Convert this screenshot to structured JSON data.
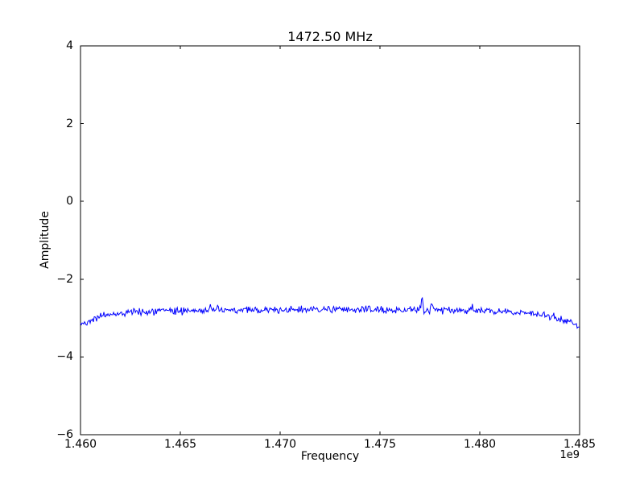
{
  "figure": {
    "background": "#ffffff",
    "frame_color": "#000000"
  },
  "chart_data": {
    "type": "line",
    "title": "1472.50 MHz",
    "xlabel": "Frequency",
    "ylabel": "Amplitude",
    "x_offset_label": "1e9",
    "xlim_ghz": [
      1.46,
      1.485
    ],
    "ylim": [
      -6,
      4
    ],
    "grid": false,
    "legend": "none",
    "xticks_ghz": [
      1.46,
      1.465,
      1.47,
      1.475,
      1.48,
      1.485
    ],
    "xtick_labels": [
      "1.460",
      "1.465",
      "1.470",
      "1.475",
      "1.480",
      "1.485"
    ],
    "yticks": [
      4,
      2,
      0,
      -2,
      -4,
      -6
    ],
    "ytick_labels": [
      "4",
      "2",
      "0",
      "−2",
      "−4",
      "−6"
    ],
    "line_color": "#0000ff",
    "line_width": 1,
    "series": [
      {
        "name": "spectrum",
        "description": "noisy bandpass spectrum, flat top near -2.8 with edge roll-off",
        "envelope_x_ghz": [
          1.46,
          1.4605,
          1.461,
          1.4615,
          1.462,
          1.463,
          1.465,
          1.4675,
          1.47,
          1.4725,
          1.475,
          1.4775,
          1.48,
          1.4815,
          1.4825,
          1.4835,
          1.4843,
          1.485
        ],
        "envelope_y": [
          -3.17,
          -3.05,
          -2.96,
          -2.91,
          -2.87,
          -2.84,
          -2.81,
          -2.8,
          -2.79,
          -2.78,
          -2.79,
          -2.79,
          -2.81,
          -2.84,
          -2.88,
          -2.95,
          -3.05,
          -3.22
        ],
        "noise_amplitude": 0.09,
        "noise_seed": 42,
        "n_points": 620,
        "spikes": [
          {
            "x_ghz": 1.4771,
            "amp": 0.3
          },
          {
            "x_ghz": 1.4776,
            "amp": 0.22
          },
          {
            "x_ghz": 1.4665,
            "amp": 0.13
          },
          {
            "x_ghz": 1.4796,
            "amp": 0.15
          }
        ]
      }
    ]
  }
}
